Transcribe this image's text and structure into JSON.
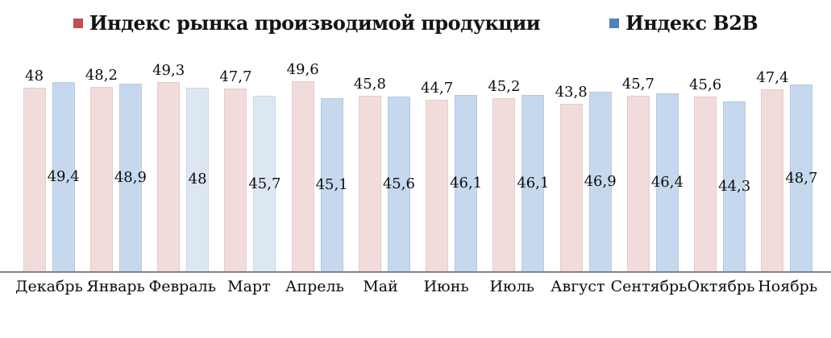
{
  "chart_data": {
    "type": "bar",
    "title": "",
    "xlabel": "",
    "ylabel": "",
    "ylim": [
      0,
      50
    ],
    "grid": false,
    "legend_position": "top",
    "decimal_separator": ",",
    "axis_line_color": "#828282",
    "categories": [
      "Декабрь",
      "Январь",
      "Февраль",
      "Март",
      "Апрель",
      "Май",
      "Июнь",
      "Июль",
      "Август",
      "Сентябрь",
      "Октябрь",
      "Ноябрь"
    ],
    "series": [
      {
        "name": "Индекс рынка производимой продукции",
        "legend_color": "#c0504d",
        "bar_color": "#f2dcdb",
        "label_position": "above",
        "values": [
          48,
          48.2,
          49.3,
          47.7,
          49.6,
          45.8,
          44.7,
          45.2,
          43.8,
          45.7,
          45.6,
          47.4
        ]
      },
      {
        "name": "Индекс B2B",
        "legend_color": "#4f81bd",
        "bar_color": "#c5d8ee",
        "light_bar_color": "#dde7f2",
        "light_indices": [
          2,
          3
        ],
        "label_position": "inside-center",
        "values": [
          49.4,
          48.9,
          48,
          45.7,
          45.1,
          45.6,
          46.1,
          46.1,
          46.9,
          46.4,
          44.3,
          48.7
        ]
      }
    ]
  }
}
